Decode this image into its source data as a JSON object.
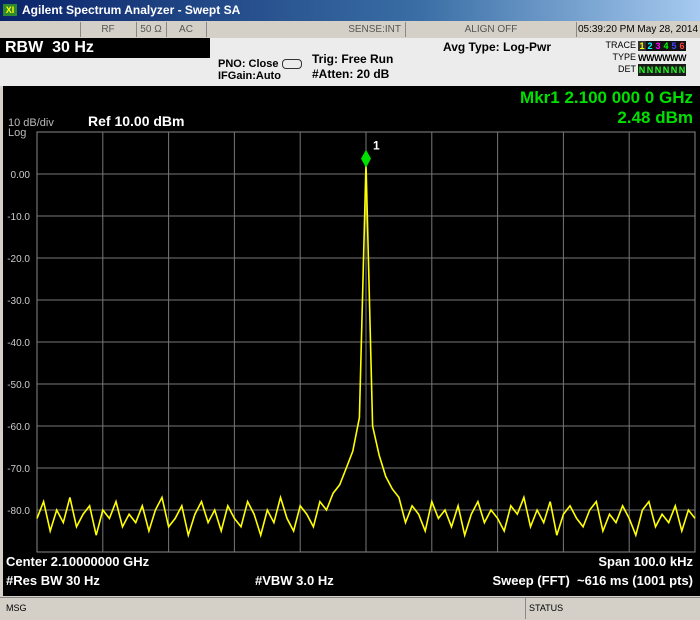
{
  "window": {
    "title": "Agilent Spectrum Analyzer - Swept SA"
  },
  "status_bar": {
    "rf": "RF",
    "impedance": "50 Ω",
    "coupling": "AC",
    "sense": "SENSE:INT",
    "align": "ALIGN OFF",
    "datetime": "05:39:20 PM May 28, 2014"
  },
  "settings": {
    "rbw": "RBW  30 Hz",
    "pno": "PNO: Close",
    "ifgain": "IFGain:Auto",
    "trig": "Trig: Free Run",
    "atten": "#Atten: 20 dB",
    "avg_type": "Avg Type: Log-Pwr",
    "trace_label": "TRACE",
    "type_label": "TYPE",
    "det_label": "DET",
    "trace_numbers": [
      "1",
      "2",
      "3",
      "4",
      "5",
      "6"
    ],
    "types": [
      "W",
      "W",
      "W",
      "W",
      "W",
      "W"
    ],
    "dets": [
      "N",
      "N",
      "N",
      "N",
      "N",
      "N"
    ]
  },
  "chart_data": {
    "type": "line",
    "scale": "10 dB/div",
    "scale_type": "Log",
    "ref_level": "Ref 10.00 dBm",
    "color": "#ffff00",
    "grid": true,
    "ylim": [
      -90,
      10
    ],
    "yticks": [
      {
        "value": 0,
        "label": "0.00"
      },
      {
        "value": -10,
        "label": "-10.0"
      },
      {
        "value": -20,
        "label": "-20.0"
      },
      {
        "value": -30,
        "label": "-30.0"
      },
      {
        "value": -40,
        "label": "-40.0"
      },
      {
        "value": -50,
        "label": "-50.0"
      },
      {
        "value": -60,
        "label": "-60.0"
      },
      {
        "value": -70,
        "label": "-70.0"
      },
      {
        "value": -80,
        "label": "-80.0"
      }
    ],
    "values": [
      -82,
      -78,
      -85,
      -80,
      -83,
      -77,
      -84,
      -81,
      -79,
      -86,
      -80,
      -82,
      -78,
      -84,
      -81,
      -83,
      -79,
      -85,
      -80,
      -77,
      -84,
      -82,
      -79,
      -86,
      -81,
      -78,
      -83,
      -80,
      -85,
      -79,
      -82,
      -84,
      -78,
      -81,
      -86,
      -80,
      -83,
      -77,
      -82,
      -85,
      -79,
      -81,
      -84,
      -78,
      -80,
      -76,
      -74,
      -70,
      -66,
      -58,
      2.48,
      -60,
      -67,
      -72,
      -75,
      -77,
      -83,
      -79,
      -81,
      -85,
      -78,
      -82,
      -80,
      -84,
      -79,
      -86,
      -81,
      -78,
      -83,
      -80,
      -82,
      -85,
      -79,
      -81,
      -77,
      -84,
      -80,
      -83,
      -78,
      -86,
      -81,
      -79,
      -82,
      -84,
      -80,
      -78,
      -85,
      -81,
      -83,
      -79,
      -82,
      -86,
      -80,
      -78,
      -84,
      -81,
      -83,
      -79,
      -85,
      -80,
      -82
    ],
    "marker": {
      "label": "1",
      "index": 50,
      "value": 2.48,
      "readout_freq": "Mkr1 2.100 000 0 GHz",
      "readout_level": "2.48 dBm",
      "color": "#00e000"
    },
    "center": "Center 2.10000000 GHz",
    "span": "Span 100.0 kHz",
    "res_bw": "#Res BW 30 Hz",
    "vbw": "#VBW 3.0 Hz",
    "sweep": "Sweep (FFT)  ~616 ms (1001 pts)"
  },
  "footer": {
    "msg": "MSG",
    "status": "STATUS"
  }
}
